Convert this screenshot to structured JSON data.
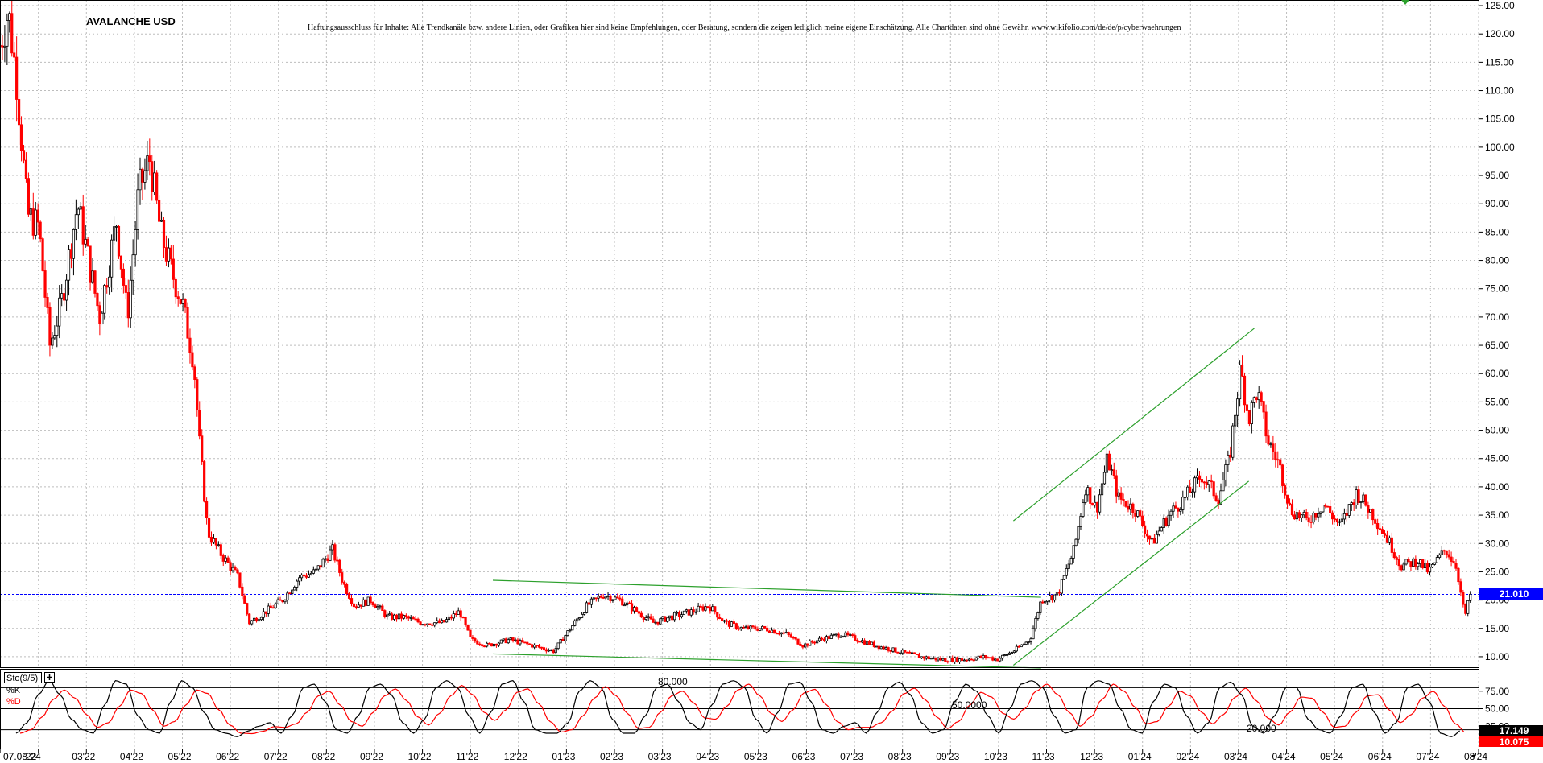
{
  "chart_data": [
    {
      "type": "candlestick",
      "title": "AVALANCHE USD",
      "disclaimer": "Haftungsausschluss für Inhalte: Alle Trendkanäle bzw. andere Linien, oder Grafiken hier sind keine Empfehlungen, oder Beratung, sondern die zeigen lediglich meine eigene Einschätzung. Alle Chartdaten sind ohne Gewähr. www.wikifolio.com/de/de/p/cyberwaehrungen",
      "y_axis": {
        "ticks": [
          "125.00",
          "120.00",
          "115.00",
          "110.00",
          "105.00",
          "100.00",
          "95.00",
          "90.00",
          "85.00",
          "80.00",
          "75.00",
          "70.00",
          "65.00",
          "60.00",
          "55.00",
          "50.00",
          "45.00",
          "40.00",
          "35.00",
          "30.00",
          "25.00",
          "20.00",
          "15.00",
          "10.00"
        ],
        "ylim": [
          8,
          126
        ],
        "grid": true
      },
      "x_axis": {
        "ticks": [
          "07.08.24",
          "'22",
          "03'22",
          "04'22",
          "05'22",
          "06'22",
          "07'22",
          "08'22",
          "09'22",
          "10'22",
          "11'22",
          "12'22",
          "01'23",
          "02'23",
          "03'23",
          "04'23",
          "05'23",
          "06'23",
          "07'23",
          "08'23",
          "09'23",
          "10'23",
          "11'23",
          "12'23",
          "01'24",
          "02'24",
          "03'24",
          "04'24",
          "05'24",
          "06'24",
          "07'24",
          "08'24"
        ],
        "xlim": [
          2022.0,
          2024.67
        ],
        "grid": true
      },
      "last_price": "21.010",
      "price_path": [
        {
          "x": 2022.0,
          "y": 118
        },
        {
          "x": 2022.015,
          "y": 124
        },
        {
          "x": 2022.03,
          "y": 112
        },
        {
          "x": 2022.05,
          "y": 88
        },
        {
          "x": 2022.07,
          "y": 86
        },
        {
          "x": 2022.09,
          "y": 65
        },
        {
          "x": 2022.11,
          "y": 72
        },
        {
          "x": 2022.14,
          "y": 90
        },
        {
          "x": 2022.16,
          "y": 80
        },
        {
          "x": 2022.18,
          "y": 70
        },
        {
          "x": 2022.21,
          "y": 87
        },
        {
          "x": 2022.23,
          "y": 70
        },
        {
          "x": 2022.25,
          "y": 92
        },
        {
          "x": 2022.27,
          "y": 98
        },
        {
          "x": 2022.29,
          "y": 85
        },
        {
          "x": 2022.31,
          "y": 78
        },
        {
          "x": 2022.33,
          "y": 72
        },
        {
          "x": 2022.35,
          "y": 62
        },
        {
          "x": 2022.36,
          "y": 48
        },
        {
          "x": 2022.375,
          "y": 32
        },
        {
          "x": 2022.4,
          "y": 28
        },
        {
          "x": 2022.43,
          "y": 24
        },
        {
          "x": 2022.45,
          "y": 16
        },
        {
          "x": 2022.48,
          "y": 18
        },
        {
          "x": 2022.51,
          "y": 20
        },
        {
          "x": 2022.54,
          "y": 24
        },
        {
          "x": 2022.57,
          "y": 25
        },
        {
          "x": 2022.6,
          "y": 29
        },
        {
          "x": 2022.62,
          "y": 23
        },
        {
          "x": 2022.64,
          "y": 19
        },
        {
          "x": 2022.67,
          "y": 20
        },
        {
          "x": 2022.7,
          "y": 17
        },
        {
          "x": 2022.73,
          "y": 17
        },
        {
          "x": 2022.76,
          "y": 16
        },
        {
          "x": 2022.8,
          "y": 16
        },
        {
          "x": 2022.83,
          "y": 18
        },
        {
          "x": 2022.85,
          "y": 13
        },
        {
          "x": 2022.88,
          "y": 12
        },
        {
          "x": 2022.92,
          "y": 13
        },
        {
          "x": 2022.96,
          "y": 12
        },
        {
          "x": 2023.0,
          "y": 11
        },
        {
          "x": 2023.03,
          "y": 15
        },
        {
          "x": 2023.06,
          "y": 19
        },
        {
          "x": 2023.09,
          "y": 21
        },
        {
          "x": 2023.12,
          "y": 20
        },
        {
          "x": 2023.15,
          "y": 18
        },
        {
          "x": 2023.18,
          "y": 16
        },
        {
          "x": 2023.21,
          "y": 17
        },
        {
          "x": 2023.25,
          "y": 18
        },
        {
          "x": 2023.28,
          "y": 19
        },
        {
          "x": 2023.31,
          "y": 16
        },
        {
          "x": 2023.34,
          "y": 15
        },
        {
          "x": 2023.38,
          "y": 15
        },
        {
          "x": 2023.42,
          "y": 14
        },
        {
          "x": 2023.45,
          "y": 12
        },
        {
          "x": 2023.48,
          "y": 13
        },
        {
          "x": 2023.52,
          "y": 14
        },
        {
          "x": 2023.55,
          "y": 13
        },
        {
          "x": 2023.58,
          "y": 12
        },
        {
          "x": 2023.62,
          "y": 11
        },
        {
          "x": 2023.66,
          "y": 10
        },
        {
          "x": 2023.7,
          "y": 9.5
        },
        {
          "x": 2023.74,
          "y": 9.5
        },
        {
          "x": 2023.78,
          "y": 10
        },
        {
          "x": 2023.8,
          "y": 9.5
        },
        {
          "x": 2023.83,
          "y": 11
        },
        {
          "x": 2023.86,
          "y": 13
        },
        {
          "x": 2023.88,
          "y": 20
        },
        {
          "x": 2023.91,
          "y": 21
        },
        {
          "x": 2023.94,
          "y": 29
        },
        {
          "x": 2023.96,
          "y": 40
        },
        {
          "x": 2023.98,
          "y": 36
        },
        {
          "x": 2024.0,
          "y": 45
        },
        {
          "x": 2024.02,
          "y": 38
        },
        {
          "x": 2024.05,
          "y": 36
        },
        {
          "x": 2024.08,
          "y": 30
        },
        {
          "x": 2024.11,
          "y": 35
        },
        {
          "x": 2024.14,
          "y": 38
        },
        {
          "x": 2024.17,
          "y": 42
        },
        {
          "x": 2024.2,
          "y": 38
        },
        {
          "x": 2024.22,
          "y": 45
        },
        {
          "x": 2024.24,
          "y": 61
        },
        {
          "x": 2024.255,
          "y": 52
        },
        {
          "x": 2024.27,
          "y": 57
        },
        {
          "x": 2024.29,
          "y": 48
        },
        {
          "x": 2024.31,
          "y": 44
        },
        {
          "x": 2024.33,
          "y": 36
        },
        {
          "x": 2024.36,
          "y": 34
        },
        {
          "x": 2024.39,
          "y": 37
        },
        {
          "x": 2024.42,
          "y": 33
        },
        {
          "x": 2024.45,
          "y": 39
        },
        {
          "x": 2024.48,
          "y": 35
        },
        {
          "x": 2024.51,
          "y": 30
        },
        {
          "x": 2024.53,
          "y": 26
        },
        {
          "x": 2024.56,
          "y": 27
        },
        {
          "x": 2024.58,
          "y": 25
        },
        {
          "x": 2024.61,
          "y": 29
        },
        {
          "x": 2024.63,
          "y": 26
        },
        {
          "x": 2024.645,
          "y": 17
        },
        {
          "x": 2024.655,
          "y": 21
        }
      ],
      "trendlines": [
        {
          "x1": 2022.89,
          "y1": 23.5,
          "x2": 2023.88,
          "y2": 20.5
        },
        {
          "x1": 2022.89,
          "y1": 10.5,
          "x2": 2023.88,
          "y2": 8.0
        },
        {
          "x1": 2023.83,
          "y1": 34,
          "x2": 2024.265,
          "y2": 68
        },
        {
          "x1": 2023.83,
          "y1": 8.5,
          "x2": 2024.255,
          "y2": 41
        }
      ],
      "reference_line": 21.01
    },
    {
      "type": "line",
      "title": "Sto(9/5)",
      "series": [
        {
          "name": "%K",
          "color": "#000000"
        },
        {
          "name": "%D",
          "color": "#ff0000"
        }
      ],
      "levels": [
        "80.000",
        "50.0000",
        "20.000"
      ],
      "y_axis": {
        "ticks": [
          "75.00",
          "50.00",
          "25.00"
        ],
        "ylim": [
          0,
          100
        ]
      },
      "last_values": {
        "k": "17.149",
        "d": "10.075"
      },
      "k_path": [
        15,
        30,
        70,
        90,
        70,
        35,
        20,
        15,
        55,
        90,
        85,
        40,
        20,
        15,
        60,
        90,
        80,
        45,
        20,
        15,
        10,
        18,
        25,
        30,
        15,
        40,
        80,
        85,
        60,
        20,
        15,
        40,
        80,
        85,
        70,
        30,
        15,
        35,
        80,
        90,
        80,
        40,
        15,
        45,
        85,
        90,
        60,
        20,
        15,
        15,
        30,
        75,
        90,
        80,
        35,
        15,
        15,
        40,
        80,
        85,
        60,
        30,
        20,
        55,
        85,
        90,
        80,
        35,
        15,
        45,
        85,
        88,
        60,
        20,
        15,
        25,
        30,
        15,
        45,
        80,
        88,
        70,
        30,
        15,
        20,
        60,
        85,
        75,
        40,
        15,
        50,
        85,
        90,
        80,
        40,
        15,
        20,
        80,
        90,
        85,
        50,
        20,
        15,
        60,
        85,
        80,
        40,
        15,
        30,
        80,
        88,
        70,
        25,
        15,
        40,
        80,
        80,
        35,
        20,
        15,
        40,
        80,
        85,
        45,
        15,
        30,
        80,
        85,
        60,
        15,
        10,
        20
      ]
    }
  ]
}
